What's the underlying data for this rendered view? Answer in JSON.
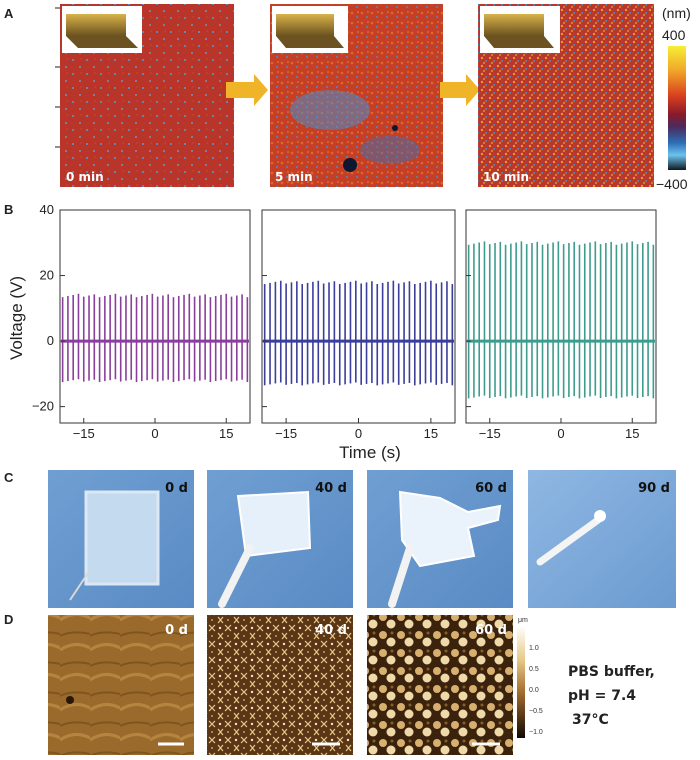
{
  "panels": {
    "A": {
      "letter": "A",
      "maps": [
        {
          "label": "0 min"
        },
        {
          "label": "5 min"
        },
        {
          "label": "10 min"
        }
      ],
      "colorbar": {
        "unit": "(nm)",
        "max": "400",
        "min": "−400",
        "colors": [
          "#f7ee35",
          "#f0a52a",
          "#d9401f",
          "#8a1a2b",
          "#4b2a5c",
          "#2d6db4",
          "#6cc3ee",
          "#101820"
        ]
      }
    },
    "B": {
      "letter": "B",
      "ylabel": "Voltage (V)",
      "xlabel": "Time (s)"
    },
    "C": {
      "letter": "C",
      "photos": [
        {
          "label": "0 d"
        },
        {
          "label": "40 d"
        },
        {
          "label": "60 d"
        },
        {
          "label": "90 d"
        }
      ]
    },
    "D": {
      "letter": "D",
      "images": [
        {
          "label": "0 d"
        },
        {
          "label": "40 d"
        },
        {
          "label": "60 d"
        }
      ],
      "colorbar": {
        "unit": "μm",
        "ticks": [
          "1.0",
          "0.5",
          "0.0",
          "−0.5",
          "−1.0"
        ]
      },
      "conditions": [
        "PBS buffer,",
        "pH = 7.4",
        "37°C"
      ]
    }
  },
  "chart_data": [
    {
      "type": "line",
      "panel": "B",
      "subplots": 3,
      "xlim": [
        -20,
        20
      ],
      "ylim": [
        -25,
        40
      ],
      "xticks": [
        -15,
        0,
        15
      ],
      "yticks": [
        -20,
        0,
        20,
        40
      ],
      "xlabel": "Time (s)",
      "ylabel": "Voltage (V)",
      "peak_count": 36,
      "series": [
        {
          "color": "#8a3f9c",
          "positive_peak": 14,
          "negative_peak": -12,
          "baseline": 0
        },
        {
          "color": "#3b3e9a",
          "positive_peak": 18,
          "negative_peak": -13,
          "baseline": 0
        },
        {
          "color": "#3e9c8e",
          "positive_peak": 30,
          "negative_peak": -17,
          "baseline": 0
        }
      ]
    }
  ]
}
